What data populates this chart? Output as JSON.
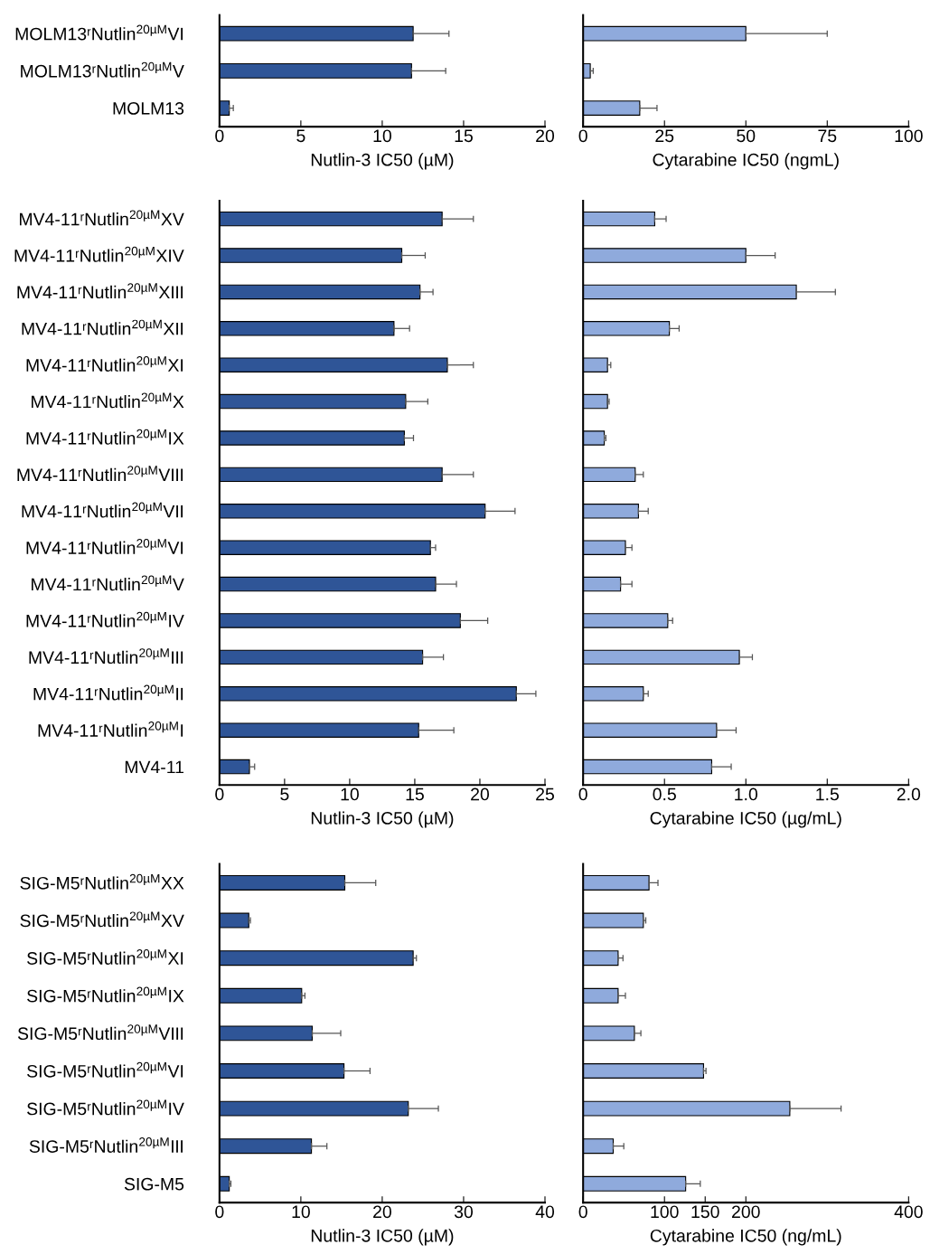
{
  "chart_data": [
    {
      "type": "bar",
      "orientation": "horizontal",
      "xlabel": "Nutlin-3 IC50 (µM)",
      "categories": [
        "MOLM13ʳNutlin$^{20µM}$VI",
        "MOLM13ʳNutlin$^{20µM}$V",
        "MOLM13"
      ],
      "series": [
        {
          "color": "#2f5597",
          "values": [
            11.9,
            11.8,
            0.6
          ],
          "errors": [
            [
              11.9,
              14.1
            ],
            [
              11.8,
              13.9
            ],
            [
              0.6,
              0.85
            ]
          ]
        }
      ],
      "xlim": [
        0,
        20
      ],
      "xticks": [
        0,
        5,
        10,
        15,
        20
      ],
      "grid": false,
      "legend": false
    },
    {
      "type": "bar",
      "orientation": "horizontal",
      "xlabel": "Cytarabine IC50 (ngmL)",
      "categories": [
        null,
        null,
        null
      ],
      "series": [
        {
          "color": "#8faadc",
          "values": [
            50,
            2.2,
            17.4
          ],
          "errors": [
            [
              50,
              75
            ],
            [
              2.2,
              3.1
            ],
            [
              17.4,
              22.7
            ]
          ]
        }
      ],
      "xlim": [
        0,
        100
      ],
      "xticks": [
        0,
        25,
        50,
        75,
        100
      ],
      "grid": false,
      "legend": false
    },
    {
      "type": "bar",
      "orientation": "horizontal",
      "xlabel": "Nutlin-3 IC50 (µM)",
      "categories": [
        "MV4-11ʳNutlin$^{20µM}$XV",
        "MV4-11ʳNutlin$^{20µM}$XIV",
        "MV4-11ʳNutlin$^{20µM}$XIII",
        "MV4-11ʳNutlin$^{20µM}$XII",
        "MV4-11ʳNutlin$^{20µM}$XI",
        "MV4-11ʳNutlin$^{20µM}$X",
        "MV4-11ʳNutlin$^{20µM}$IX",
        "MV4-11ʳNutlin$^{20µM}$VIII",
        "MV4-11ʳNutlin$^{20µM}$VII",
        "MV4-11ʳNutlin$^{20µM}$VI",
        "MV4-11ʳNutlin$^{20µM}$V",
        "MV4-11ʳNutlin$^{20µM}$IV",
        "MV4-11ʳNutlin$^{20µM}$III",
        "MV4-11ʳNutlin$^{20µM}$II",
        "MV4-11ʳNutlin$^{20µM}$I",
        "MV4-11"
      ],
      "series": [
        {
          "color": "#2f5597",
          "values": [
            17.1,
            14.0,
            15.4,
            13.4,
            17.5,
            14.3,
            14.2,
            17.1,
            20.4,
            16.2,
            16.6,
            18.5,
            15.6,
            22.8,
            15.3,
            2.3
          ],
          "errors": [
            [
              17.1,
              19.5
            ],
            [
              14.0,
              15.8
            ],
            [
              15.4,
              16.4
            ],
            [
              13.4,
              14.6
            ],
            [
              17.5,
              19.5
            ],
            [
              14.3,
              16.0
            ],
            [
              14.2,
              14.9
            ],
            [
              17.1,
              19.5
            ],
            [
              20.4,
              22.7
            ],
            [
              16.2,
              16.6
            ],
            [
              16.6,
              18.2
            ],
            [
              18.5,
              20.6
            ],
            [
              15.6,
              17.2
            ],
            [
              22.8,
              24.3
            ],
            [
              15.3,
              18.0
            ],
            [
              2.3,
              2.7
            ]
          ]
        }
      ],
      "xlim": [
        0,
        25
      ],
      "xticks": [
        0,
        5,
        10,
        15,
        20,
        25
      ],
      "grid": false,
      "legend": false
    },
    {
      "type": "bar",
      "orientation": "horizontal",
      "xlabel": "Cytarabine IC50 (µg/mL)",
      "categories": [
        null,
        null,
        null,
        null,
        null,
        null,
        null,
        null,
        null,
        null,
        null,
        null,
        null,
        null,
        null,
        null
      ],
      "series": [
        {
          "color": "#8faadc",
          "values": [
            0.44,
            1.0,
            1.31,
            0.53,
            0.15,
            0.15,
            0.13,
            0.32,
            0.34,
            0.26,
            0.23,
            0.52,
            0.96,
            0.37,
            0.82,
            0.79
          ],
          "errors": [
            [
              0.44,
              0.51
            ],
            [
              1.0,
              1.18
            ],
            [
              1.31,
              1.55
            ],
            [
              0.53,
              0.59
            ],
            [
              0.15,
              0.17
            ],
            [
              0.15,
              0.16
            ],
            [
              0.13,
              0.14
            ],
            [
              0.32,
              0.37
            ],
            [
              0.34,
              0.4
            ],
            [
              0.26,
              0.3
            ],
            [
              0.23,
              0.3
            ],
            [
              0.52,
              0.55
            ],
            [
              0.96,
              1.04
            ],
            [
              0.37,
              0.4
            ],
            [
              0.82,
              0.94
            ],
            [
              0.79,
              0.91
            ]
          ]
        }
      ],
      "xlim": [
        0,
        2.0
      ],
      "xticks": [
        0,
        {
          "value": 0.5,
          "label": "0.5"
        },
        {
          "value": 1.0,
          "label": "1.0"
        },
        {
          "value": 1.5,
          "label": "1.5"
        },
        {
          "value": 2.0,
          "label": "2.0"
        }
      ],
      "grid": false,
      "legend": false
    },
    {
      "type": "bar",
      "orientation": "horizontal",
      "xlabel": "Nutlin-3 IC50 (µM)",
      "categories": [
        "SIG-M5ʳNutlin$^{20µM}$XX",
        "SIG-M5ʳNutlin$^{20µM}$XV",
        "SIG-M5ʳNutlin$^{20µM}$XI",
        "SIG-M5ʳNutlin$^{20µM}$IX",
        "SIG-M5ʳNutlin$^{20µM}$VIII",
        "SIG-M5ʳNutlin$^{20µM}$VI",
        "SIG-M5ʳNutlin$^{20µM}$IV",
        "SIG-M5ʳNutlin$^{20µM}$III",
        "SIG-M5"
      ],
      "series": [
        {
          "color": "#2f5597",
          "values": [
            15.4,
            3.6,
            23.8,
            10.1,
            11.4,
            15.3,
            23.2,
            11.3,
            1.2
          ],
          "errors": [
            [
              15.4,
              19.2
            ],
            [
              3.6,
              3.8
            ],
            [
              23.8,
              24.2
            ],
            [
              10.1,
              10.5
            ],
            [
              11.4,
              14.9
            ],
            [
              15.3,
              18.5
            ],
            [
              23.2,
              26.9
            ],
            [
              11.3,
              13.2
            ],
            [
              1.2,
              1.4
            ]
          ]
        }
      ],
      "xlim": [
        0,
        40
      ],
      "xticks": [
        0,
        10,
        20,
        30,
        40
      ],
      "grid": false,
      "legend": false
    },
    {
      "type": "bar",
      "orientation": "horizontal",
      "xlabel": "Cytarabine IC50 (ng/mL)",
      "categories": [
        null,
        null,
        null,
        null,
        null,
        null,
        null,
        null,
        null
      ],
      "series": [
        {
          "color": "#8faadc",
          "values": [
            81,
            74,
            43,
            43,
            63,
            148,
            254,
            37,
            126
          ],
          "errors": [
            [
              81,
              92
            ],
            [
              74,
              77
            ],
            [
              43,
              49
            ],
            [
              43,
              52
            ],
            [
              63,
              71
            ],
            [
              148,
              151
            ],
            [
              254,
              317
            ],
            [
              37,
              50
            ],
            [
              126,
              144
            ]
          ]
        }
      ],
      "xlim": [
        0,
        400
      ],
      "xticks": [
        0,
        100,
        150,
        200,
        400
      ],
      "grid": false,
      "legend": false
    }
  ]
}
